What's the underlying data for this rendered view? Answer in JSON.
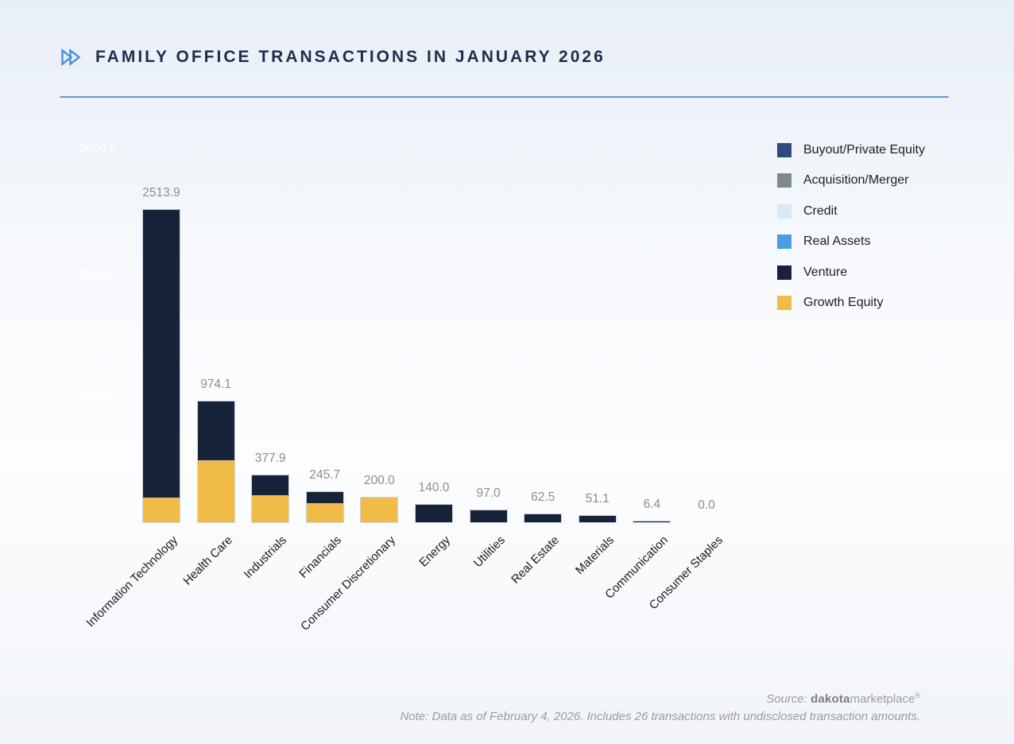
{
  "header": {
    "title": "FAMILY OFFICE TRANSACTIONS IN JANUARY 2026",
    "icon": "double-chevron-right-icon",
    "accent_color": "#4A90E2",
    "rule_color": "#5B9BD5"
  },
  "footer": {
    "source_prefix": "Source:",
    "source_brand_bold": "dakota",
    "source_brand_rest": "marketplace",
    "source_reg": "®",
    "note": "Note: Data as of February 4, 2026. Includes 26 transactions with undisclosed transaction amounts."
  },
  "chart_data": {
    "type": "bar",
    "stacked": true,
    "title": "FAMILY OFFICE TRANSACTIONS IN JANUARY 2026",
    "grid": false,
    "legend_position": "top-right",
    "ylim": [
      0,
      3000
    ],
    "categories": [
      "Information Technology",
      "Health Care",
      "Industrials",
      "Financials",
      "Consumer Discretionary",
      "Energy",
      "Utilities",
      "Real Estate",
      "Materials",
      "Communication",
      "Consumer Staples"
    ],
    "totals": [
      2513.9,
      974.1,
      377.9,
      245.7,
      200.0,
      140.0,
      97.0,
      62.5,
      51.1,
      6.4,
      0.0
    ],
    "value_labels": [
      "2513.9",
      "974.1",
      "377.9",
      "245.7",
      "200.0",
      "140.0",
      "97.0",
      "62.5",
      "51.1",
      "6.4",
      "0.0"
    ],
    "series": [
      {
        "name": "Buyout/Private Equity",
        "color": "#2F4B7B",
        "values": [
          0,
          0,
          0,
          0,
          0,
          0,
          0,
          0,
          0,
          0,
          0
        ]
      },
      {
        "name": "Acquisition/Merger",
        "color": "#7F8B85",
        "values": [
          0,
          0,
          0,
          0,
          0,
          0,
          0,
          0,
          0,
          0,
          0
        ]
      },
      {
        "name": "Credit",
        "color": "#D9E8F5",
        "values": [
          0,
          0,
          0,
          0,
          0,
          0,
          0,
          0,
          0,
          0,
          0
        ]
      },
      {
        "name": "Real Assets",
        "color": "#4C9EE4",
        "values": [
          0,
          0,
          0,
          0,
          0,
          0,
          0,
          0,
          0,
          0,
          0
        ]
      },
      {
        "name": "Venture",
        "color": "#172339",
        "values": [
          2313.9,
          474.1,
          157.9,
          90.7,
          0,
          140.0,
          97.0,
          62.5,
          51.1,
          6.4,
          0
        ]
      },
      {
        "name": "Growth Equity",
        "color": "#F0BC47",
        "values": [
          200.0,
          500.0,
          220.0,
          155.0,
          200.0,
          0,
          0,
          0,
          0,
          0,
          0
        ]
      }
    ],
    "yticks": [
      {
        "label": "0.0",
        "value": 0
      },
      {
        "label": "1000.0",
        "value": 1000
      },
      {
        "label": "2000.0",
        "value": 2000
      },
      {
        "label": "3000.0",
        "value": 3000
      }
    ],
    "ytick_color": "#FFFFFF",
    "value_label_color": "#8D8D8D"
  }
}
